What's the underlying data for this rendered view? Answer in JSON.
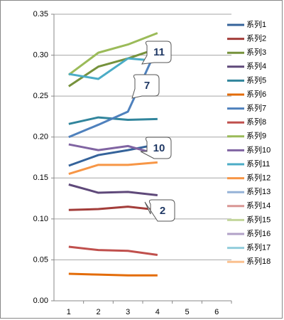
{
  "chart_data": {
    "type": "line",
    "categories": [
      1,
      2,
      3,
      4,
      5,
      6
    ],
    "ylim": [
      0,
      0.35
    ],
    "yticks": [
      {
        "value": 0,
        "label": "0.00"
      },
      {
        "value": 0.05,
        "label": "0.05"
      },
      {
        "value": 0.1,
        "label": "0.10"
      },
      {
        "value": 0.15,
        "label": "0.15"
      },
      {
        "value": 0.2,
        "label": "0.20"
      },
      {
        "value": 0.25,
        "label": "0.25"
      },
      {
        "value": 0.3,
        "label": "0.30"
      },
      {
        "value": 0.35,
        "label": "0.35"
      }
    ],
    "grid": true,
    "legend": "right",
    "series": [
      {
        "name": "系列1",
        "color": "#35639a",
        "values": [
          0.165,
          0.178,
          0.184,
          0.191,
          null,
          null
        ]
      },
      {
        "name": "系列2",
        "color": "#a33d3a",
        "values": [
          0.111,
          0.112,
          0.115,
          0.111,
          null,
          null
        ]
      },
      {
        "name": "系列3",
        "color": "#76923c",
        "values": [
          0.262,
          0.286,
          0.296,
          0.308,
          null,
          null
        ]
      },
      {
        "name": "系列4",
        "color": "#5f497a",
        "values": [
          0.142,
          0.132,
          0.133,
          0.129,
          null,
          null
        ]
      },
      {
        "name": "系列5",
        "color": "#31859c",
        "values": [
          0.216,
          0.224,
          0.221,
          0.222,
          null,
          null
        ]
      },
      {
        "name": "系列6",
        "color": "#e36c09",
        "values": [
          0.033,
          0.032,
          0.031,
          0.031,
          null,
          null
        ]
      },
      {
        "name": "系列7",
        "color": "#4f81bd",
        "values": [
          0.2,
          0.215,
          0.231,
          0.31,
          null,
          null
        ]
      },
      {
        "name": "系列8",
        "color": "#c0504d",
        "values": [
          0.066,
          0.062,
          0.061,
          0.056,
          null,
          null
        ]
      },
      {
        "name": "系列9",
        "color": "#9bbb59",
        "values": [
          0.276,
          0.303,
          0.313,
          0.327,
          null,
          null
        ]
      },
      {
        "name": "系列10",
        "color": "#8064a2",
        "values": [
          0.191,
          0.184,
          0.189,
          0.179,
          null,
          null
        ]
      },
      {
        "name": "系列11",
        "color": "#4bacc6",
        "values": [
          0.277,
          0.271,
          0.296,
          0.293,
          null,
          null
        ]
      },
      {
        "name": "系列12",
        "color": "#f79646",
        "values": [
          0.155,
          0.166,
          0.166,
          0.169,
          null,
          null
        ]
      },
      {
        "name": "系列13",
        "color": "#95b3d7",
        "values": [
          null,
          null,
          null,
          null,
          null,
          null
        ]
      },
      {
        "name": "系列14",
        "color": "#d99694",
        "values": [
          null,
          null,
          null,
          null,
          null,
          null
        ]
      },
      {
        "name": "系列15",
        "color": "#c3d69b",
        "values": [
          null,
          null,
          null,
          null,
          null,
          null
        ]
      },
      {
        "name": "系列16",
        "color": "#b2a1c7",
        "values": [
          null,
          null,
          null,
          null,
          null,
          null
        ]
      },
      {
        "name": "系列17",
        "color": "#92cddc",
        "values": [
          null,
          null,
          null,
          null,
          null,
          null
        ]
      },
      {
        "name": "系列18",
        "color": "#fac08f",
        "values": [
          null,
          null,
          null,
          null,
          null,
          null
        ]
      }
    ],
    "annotations": [
      "11",
      "7",
      "10",
      "2"
    ]
  }
}
